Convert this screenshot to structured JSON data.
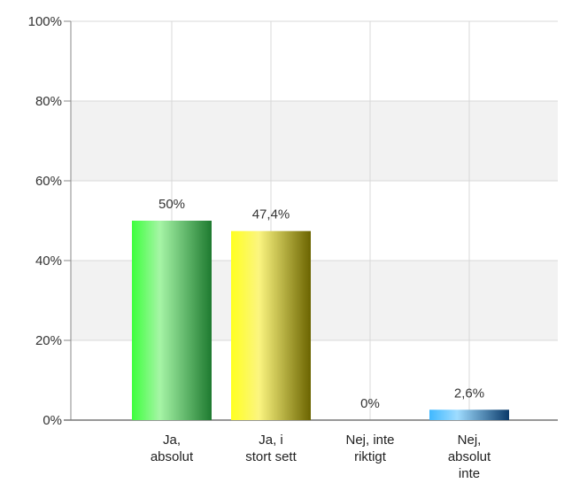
{
  "chart_data": {
    "type": "bar",
    "categories": [
      [
        "Ja,",
        "absolut"
      ],
      [
        "Ja, i",
        "stort sett"
      ],
      [
        "Nej, inte",
        "riktigt"
      ],
      [
        "Nej,",
        "absolut",
        "inte"
      ]
    ],
    "values": [
      50,
      47.4,
      0,
      2.6
    ],
    "data_labels": [
      "50%",
      "47,4%",
      "0%",
      "2,6%"
    ],
    "ylim": [
      0,
      100
    ],
    "yticks": [
      0,
      20,
      40,
      60,
      80,
      100
    ],
    "ytick_labels": [
      "0%",
      "20%",
      "40%",
      "60%",
      "80%",
      "100%"
    ],
    "grid": true,
    "legend": "none",
    "bar_colors": [
      [
        "#3cff3c",
        "#a6f5a6",
        "#1e7a30"
      ],
      [
        "#ffff20",
        "#fbf580",
        "#6b6400"
      ],
      [
        "#cccccc",
        "#eeeeee",
        "#888888"
      ],
      [
        "#3fb8ff",
        "#9fdcff",
        "#0a3a6a"
      ]
    ],
    "band_colors": [
      "#ffffff",
      "#f2f2f2"
    ]
  }
}
